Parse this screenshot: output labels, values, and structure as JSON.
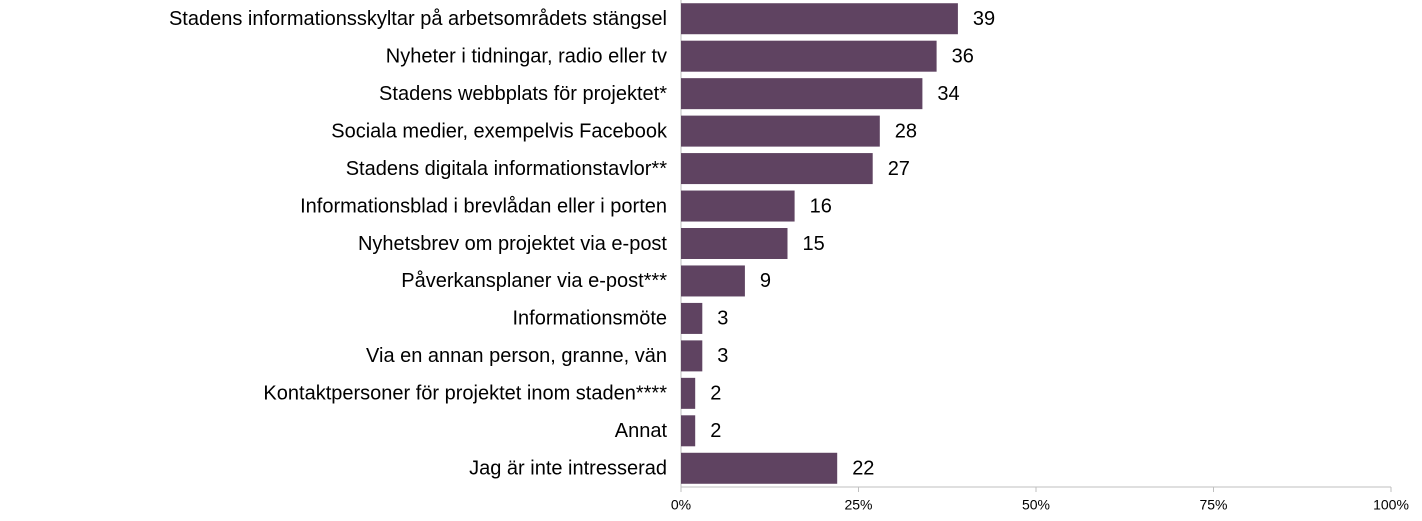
{
  "chart_data": {
    "type": "hbar",
    "categories": [
      "Stadens informationsskyltar på arbetsområdets stängsel",
      "Nyheter i tidningar, radio eller tv",
      "Stadens webbplats för projektet*",
      "Sociala medier, exempelvis Facebook",
      "Stadens digitala informationstavlor**",
      "Informationsblad i brevlådan eller i porten",
      "Nyhetsbrev om projektet via e-post",
      "Påverkansplaner via e-post***",
      "Informationsmöte",
      "Via en annan person, granne, vän",
      "Kontaktpersoner för projektet inom staden****",
      "Annat",
      "Jag är inte intresserad"
    ],
    "values": [
      39,
      36,
      34,
      28,
      27,
      16,
      15,
      9,
      3,
      3,
      2,
      2,
      22
    ],
    "color": "#5f4361",
    "xlim": [
      0,
      100
    ],
    "xticks": [
      {
        "value": 0,
        "label": "0%"
      },
      {
        "value": 25,
        "label": "25%"
      },
      {
        "value": 50,
        "label": "50%"
      },
      {
        "value": 75,
        "label": "75%"
      },
      {
        "value": 100,
        "label": "100%"
      }
    ]
  }
}
